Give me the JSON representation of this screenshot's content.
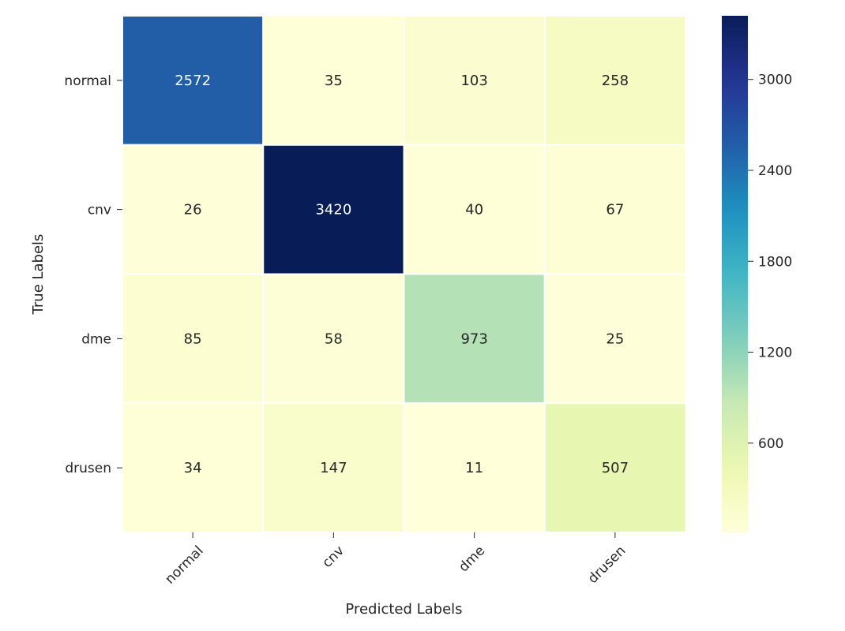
{
  "chart_data": {
    "type": "heatmap",
    "title": "",
    "xlabel": "Predicted Labels",
    "ylabel": "True Labels",
    "x_categories": [
      "normal",
      "cnv",
      "dme",
      "drusen"
    ],
    "y_categories": [
      "normal",
      "cnv",
      "dme",
      "drusen"
    ],
    "values": [
      [
        2572,
        35,
        103,
        258
      ],
      [
        26,
        3420,
        40,
        67
      ],
      [
        85,
        58,
        973,
        25
      ],
      [
        34,
        147,
        11,
        507
      ]
    ],
    "colorscale": "YlGnBu",
    "colorbar": {
      "range": [
        11,
        3420
      ],
      "ticks": [
        600,
        1200,
        1800,
        2400,
        3000
      ]
    },
    "annotations": true,
    "x_tick_rotation": -45
  }
}
